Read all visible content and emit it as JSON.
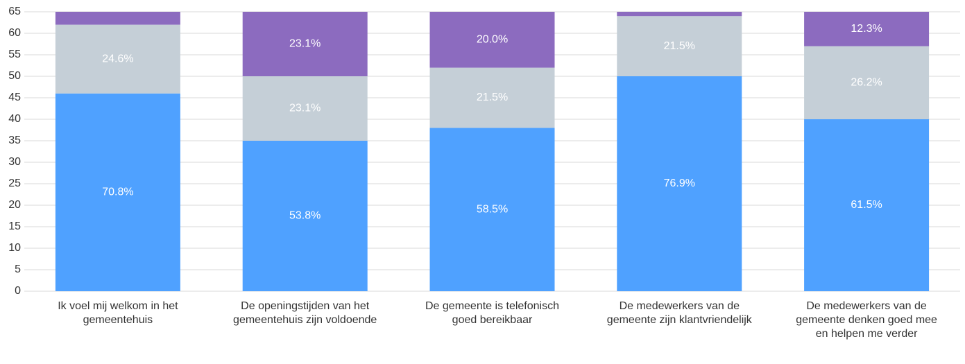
{
  "chart_data": {
    "type": "stacked_bar",
    "categories": [
      "Ik voel mij welkom in het gemeentehuis",
      "De openingstijden van het gemeentehuis zijn voldoende",
      "De gemeente is telefonisch goed bereikbaar",
      "De medewerkers van de gemeente zijn klantvriendelijk",
      "De medewerkers van de gemeente denken goed mee en helpen me verder"
    ],
    "series": [
      {
        "color": "#4fa1ff",
        "values": [
          46,
          35,
          38,
          50,
          40
        ],
        "value_labels": [
          "70.8%",
          "53.8%",
          "58.5%",
          "76.9%",
          "61.5%"
        ]
      },
      {
        "color": "#c5cfd7",
        "values": [
          16,
          15,
          14,
          14,
          17
        ],
        "value_labels": [
          "24.6%",
          "23.1%",
          "21.5%",
          "21.5%",
          "26.2%"
        ]
      },
      {
        "color": "#8c6bbf",
        "values": [
          3,
          15,
          13,
          1,
          8
        ],
        "value_labels": [
          null,
          "23.1%",
          "20.0%",
          null,
          "12.3%"
        ]
      }
    ],
    "ylim": [
      0,
      65
    ],
    "yticks": [
      0,
      5,
      10,
      15,
      20,
      25,
      30,
      35,
      40,
      45,
      50,
      55,
      60,
      65
    ],
    "grid": true
  }
}
